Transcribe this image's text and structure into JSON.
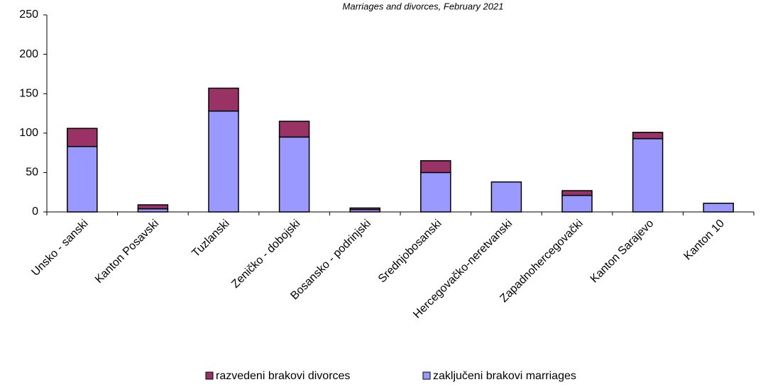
{
  "chart_data": {
    "type": "stacked_bar",
    "title": "Marriages and divorces, February 2021",
    "categories": [
      "Unsko - sanski",
      "Kanton Posavski",
      "Tuzlanski",
      "Zeničko - dobojski",
      "Bosansko - podrinjski",
      "Srednjobosanski",
      "Hercegovačko-neretvanski",
      "Zapadnohercegovački",
      "Kanton Sarajevo",
      "Kanton 10"
    ],
    "series": [
      {
        "name": "razvedeni brakovi divorces",
        "color": "#993366",
        "values": [
          23,
          5,
          29,
          20,
          2,
          15,
          0,
          6,
          8,
          0
        ]
      },
      {
        "name": "zaključeni brakovi marriages",
        "color": "#9999ff",
        "values": [
          83,
          4,
          128,
          95,
          3,
          50,
          38,
          21,
          93,
          11
        ]
      }
    ],
    "stack_order": [
      1,
      0
    ],
    "ylim": [
      0,
      250
    ],
    "yticks": [
      0,
      50,
      100,
      150,
      200,
      250
    ],
    "grid": false
  }
}
